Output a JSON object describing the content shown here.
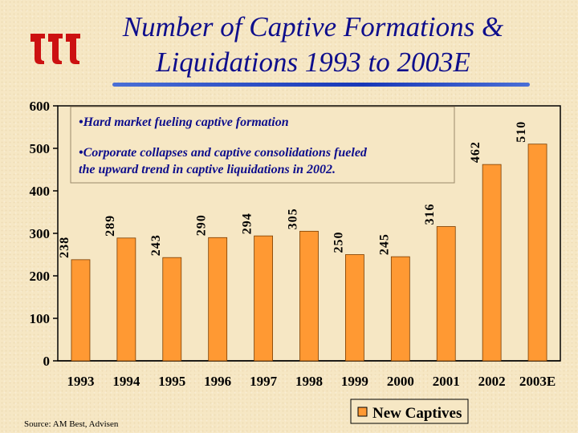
{
  "slide": {
    "title_line1": "Number of Captive Formations &",
    "title_line2": "Liquidations 1993 to 2003E",
    "source": "Source: AM Best, Advisen",
    "logo_icon": "three-ts-logo-icon"
  },
  "callout": {
    "bullet1": "•Hard market fueling captive formation",
    "bullet2_line1": "•Corporate collapses and captive consolidations fueled",
    "bullet2_line2": "the upward trend in captive liquidations in 2002."
  },
  "colors": {
    "bar": "#ff9933",
    "bar_stroke": "#7a3d00",
    "title": "#0e0e8c",
    "logo": "#cc1111",
    "plot_bg": "#f6e7c4"
  },
  "chart_data": {
    "type": "bar",
    "categories": [
      "1993",
      "1994",
      "1995",
      "1996",
      "1997",
      "1998",
      "1999",
      "2000",
      "2001",
      "2002",
      "2003E"
    ],
    "series": [
      {
        "name": "New Captives",
        "values": [
          238,
          289,
          243,
          290,
          294,
          305,
          250,
          245,
          316,
          462,
          510
        ]
      }
    ],
    "y_ticks": [
      "0",
      "100",
      "200",
      "300",
      "400",
      "500",
      "600"
    ],
    "ylim": [
      0,
      600
    ],
    "grid": false,
    "legend": "bottom-right",
    "data_labels": "rotated"
  }
}
